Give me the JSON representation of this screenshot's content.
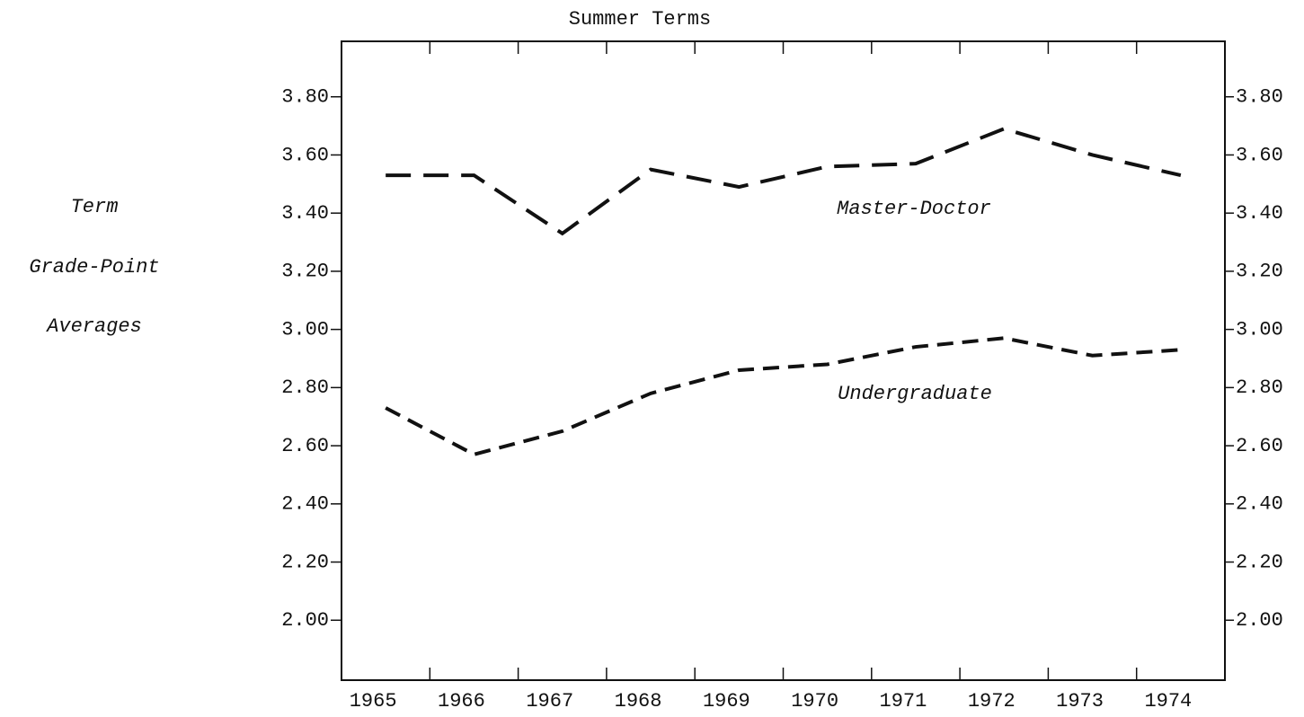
{
  "chart_data": {
    "type": "line",
    "title": "Summer Terms",
    "y_label": [
      "Term",
      "Grade-Point",
      "Averages"
    ],
    "categories": [
      "1965",
      "1966",
      "1967",
      "1968",
      "1969",
      "1970",
      "1971",
      "1972",
      "1973",
      "1974"
    ],
    "series": [
      {
        "name": "Master-Doctor",
        "color": "#111111",
        "values": [
          3.53,
          3.53,
          3.33,
          3.55,
          3.49,
          3.56,
          3.57,
          3.69,
          3.6,
          3.53
        ]
      },
      {
        "name": "Undergraduate",
        "color": "#111111",
        "values": [
          2.73,
          2.57,
          2.65,
          2.78,
          2.86,
          2.88,
          2.94,
          2.97,
          2.91,
          2.93
        ]
      }
    ],
    "ylim": [
      1.8,
      4.0
    ],
    "yticks": [
      {
        "value": 2.0,
        "label": "2.00"
      },
      {
        "value": 2.2,
        "label": "2.20"
      },
      {
        "value": 2.4,
        "label": "2.40"
      },
      {
        "value": 2.6,
        "label": "2.60"
      },
      {
        "value": 2.8,
        "label": "2.80"
      },
      {
        "value": 3.0,
        "label": "3.00"
      },
      {
        "value": 3.2,
        "label": "3.20"
      },
      {
        "value": 3.4,
        "label": "3.40"
      },
      {
        "value": 3.6,
        "label": "3.60"
      },
      {
        "value": 3.8,
        "label": "3.80"
      }
    ],
    "grid": false
  }
}
